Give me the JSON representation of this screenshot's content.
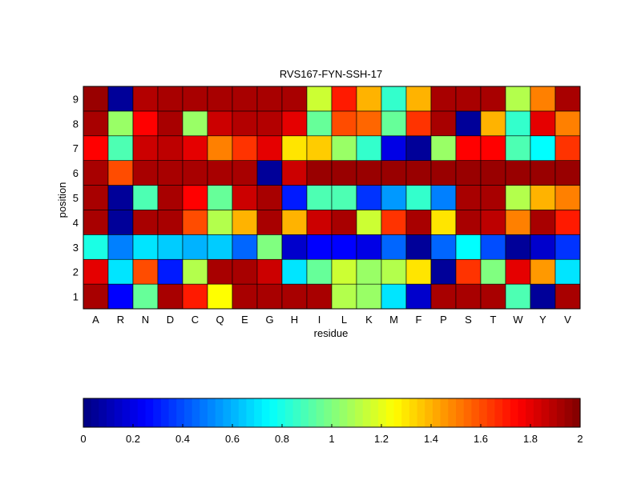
{
  "chart_data": {
    "type": "heatmap",
    "title": "RVS167-FYN-SSH-17",
    "xlabel": "residue",
    "ylabel": "position",
    "x_categories": [
      "A",
      "R",
      "N",
      "D",
      "C",
      "Q",
      "E",
      "G",
      "H",
      "I",
      "L",
      "K",
      "M",
      "F",
      "P",
      "S",
      "T",
      "W",
      "Y",
      "V"
    ],
    "y_categories": [
      "1",
      "2",
      "3",
      "4",
      "5",
      "6",
      "7",
      "8",
      "9"
    ],
    "values_by_position": {
      "9": [
        1.95,
        0.05,
        1.9,
        1.92,
        1.92,
        1.92,
        1.92,
        1.92,
        1.92,
        1.15,
        1.7,
        1.4,
        0.85,
        1.4,
        1.92,
        1.92,
        1.92,
        1.1,
        1.5,
        1.92
      ],
      "8": [
        1.92,
        1.05,
        1.75,
        1.92,
        1.05,
        1.85,
        1.9,
        1.9,
        1.8,
        0.95,
        1.6,
        1.55,
        0.95,
        1.65,
        1.92,
        0.05,
        1.4,
        0.85,
        1.8,
        1.5
      ],
      "7": [
        1.75,
        0.9,
        1.85,
        1.88,
        1.8,
        1.5,
        1.65,
        1.8,
        1.3,
        1.35,
        1.05,
        0.85,
        0.2,
        0.05,
        1.05,
        1.75,
        1.75,
        0.9,
        0.75,
        1.65
      ],
      "6": [
        1.92,
        1.6,
        1.92,
        1.92,
        1.92,
        1.92,
        1.92,
        0.05,
        1.85,
        1.95,
        1.95,
        1.95,
        1.95,
        1.95,
        1.95,
        1.95,
        1.95,
        1.95,
        1.95,
        1.95
      ],
      "5": [
        1.92,
        0.05,
        0.9,
        1.92,
        1.75,
        0.95,
        1.85,
        1.92,
        0.3,
        0.9,
        0.9,
        0.35,
        0.55,
        0.85,
        0.5,
        1.92,
        1.92,
        1.1,
        1.4,
        1.5
      ],
      "4": [
        1.92,
        0.05,
        1.92,
        1.92,
        1.6,
        1.1,
        1.4,
        1.92,
        1.4,
        1.85,
        1.92,
        1.15,
        1.65,
        1.92,
        1.3,
        1.92,
        1.88,
        1.5,
        1.92,
        1.7
      ],
      "3": [
        0.8,
        0.5,
        0.7,
        0.65,
        0.6,
        0.65,
        0.45,
        1.0,
        0.15,
        0.25,
        0.25,
        0.2,
        0.45,
        0.05,
        0.45,
        0.75,
        0.4,
        0.05,
        0.15,
        0.35
      ],
      "2": [
        1.8,
        0.7,
        1.6,
        0.3,
        1.1,
        1.92,
        1.92,
        1.85,
        0.7,
        0.95,
        1.15,
        1.05,
        1.1,
        1.3,
        0.05,
        1.65,
        1.0,
        1.8,
        1.45,
        0.7
      ],
      "1": [
        1.92,
        0.25,
        0.95,
        1.92,
        1.7,
        1.25,
        1.92,
        1.92,
        1.92,
        1.92,
        1.1,
        1.05,
        0.7,
        0.15,
        1.92,
        1.92,
        1.92,
        0.9,
        0.05,
        1.92
      ]
    },
    "colorbar": {
      "min": 0,
      "max": 2,
      "colormap": "jet",
      "tick_labels": [
        "0",
        "0.2",
        "0.4",
        "0.6",
        "0.8",
        "1",
        "1.2",
        "1.4",
        "1.6",
        "1.8",
        "2"
      ]
    }
  }
}
